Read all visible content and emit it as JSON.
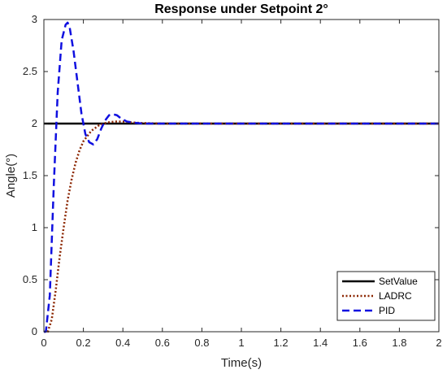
{
  "chart_data": {
    "type": "line",
    "title": "Response under Setpoint 2°",
    "xlabel": "Time(s)",
    "ylabel": "Angle(°)",
    "xlim": [
      0,
      2
    ],
    "ylim": [
      0,
      3
    ],
    "xticks": [
      "0",
      "0.2",
      "0.4",
      "0.6",
      "0.8",
      "1",
      "1.2",
      "1.4",
      "1.6",
      "1.8",
      "2"
    ],
    "yticks": [
      "0",
      "0.5",
      "1",
      "1.5",
      "2",
      "2.5",
      "3"
    ],
    "grid": false,
    "legend_position": "bottom-right",
    "series": [
      {
        "name": "SetValue",
        "color": "#000000",
        "style": "solid",
        "x": [
          0,
          2
        ],
        "y": [
          2,
          2
        ]
      },
      {
        "name": "LADRC",
        "color": "#8B2500",
        "style": "dotted",
        "x": [
          0,
          0.02,
          0.04,
          0.06,
          0.08,
          0.1,
          0.12,
          0.14,
          0.16,
          0.18,
          0.2,
          0.24,
          0.28,
          0.32,
          0.36,
          0.4,
          0.45,
          0.5,
          0.6,
          0.8,
          1.0,
          2.0
        ],
        "y": [
          0,
          0.0,
          0.12,
          0.4,
          0.72,
          1.0,
          1.26,
          1.46,
          1.62,
          1.74,
          1.83,
          1.93,
          1.985,
          2.01,
          2.02,
          2.02,
          2.01,
          2.005,
          2.0,
          2.0,
          2.0,
          2.0
        ]
      },
      {
        "name": "PID",
        "color": "#1010E0",
        "style": "dashed",
        "x": [
          0,
          0.01,
          0.03,
          0.05,
          0.07,
          0.09,
          0.11,
          0.12,
          0.13,
          0.15,
          0.17,
          0.19,
          0.21,
          0.23,
          0.25,
          0.27,
          0.29,
          0.31,
          0.33,
          0.35,
          0.37,
          0.39,
          0.42,
          0.45,
          0.5,
          0.55,
          0.6,
          0.8,
          1.0,
          2.0
        ],
        "y": [
          0,
          0.0,
          0.35,
          1.4,
          2.3,
          2.8,
          2.95,
          2.97,
          2.93,
          2.7,
          2.4,
          2.1,
          1.9,
          1.82,
          1.8,
          1.85,
          1.95,
          2.03,
          2.08,
          2.09,
          2.08,
          2.05,
          2.02,
          2.01,
          2.0,
          2.0,
          2.0,
          2.0,
          2.0,
          2.0
        ]
      }
    ]
  }
}
